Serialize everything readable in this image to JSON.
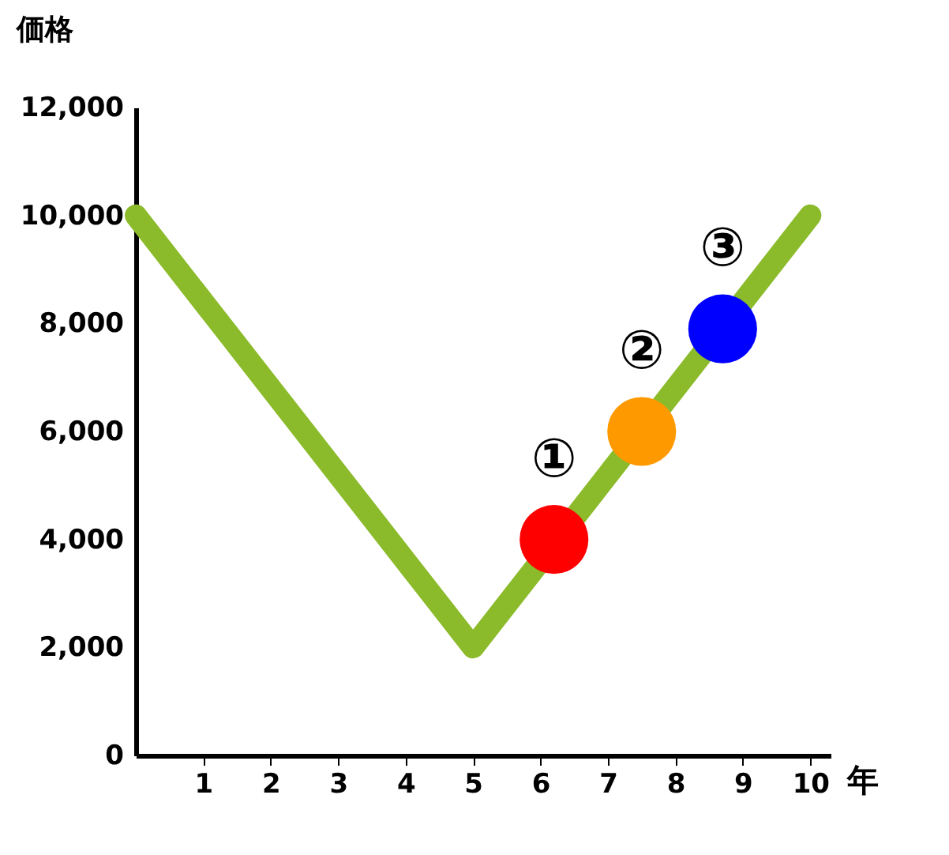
{
  "chart_data": {
    "type": "line",
    "xlabel": "年",
    "ylabel": "価格",
    "xlim": [
      0,
      10.3
    ],
    "xticks": [
      1,
      2,
      3,
      4,
      5,
      6,
      7,
      8,
      9,
      10
    ],
    "ylim": [
      0,
      12000
    ],
    "yticks": [
      {
        "value": 0,
        "label": "0"
      },
      {
        "value": 2000,
        "label": "2,000"
      },
      {
        "value": 4000,
        "label": "4,000"
      },
      {
        "value": 6000,
        "label": "6,000"
      },
      {
        "value": 8000,
        "label": "8,000"
      },
      {
        "value": 10000,
        "label": "10,000"
      },
      {
        "value": 12000,
        "label": "12,000"
      }
    ],
    "grid": false,
    "legend": false,
    "series": [
      {
        "color": "#8bbb2b",
        "x": [
          0,
          5,
          10
        ],
        "values": [
          10000,
          2000,
          10000
        ],
        "marker": "none"
      },
      {
        "type": "scatter",
        "colors": [
          "#ff0000",
          "#ff9900",
          "#0000ff"
        ],
        "x": [
          6.2,
          7.5,
          8.7
        ],
        "values": [
          4000,
          6000,
          7900
        ],
        "marker": "circle"
      }
    ],
    "annotations": [
      {
        "text": "①",
        "x": 6.2,
        "y": 4000
      },
      {
        "text": "②",
        "x": 7.5,
        "y": 6000
      },
      {
        "text": "③",
        "x": 8.7,
        "y": 7900
      }
    ]
  }
}
